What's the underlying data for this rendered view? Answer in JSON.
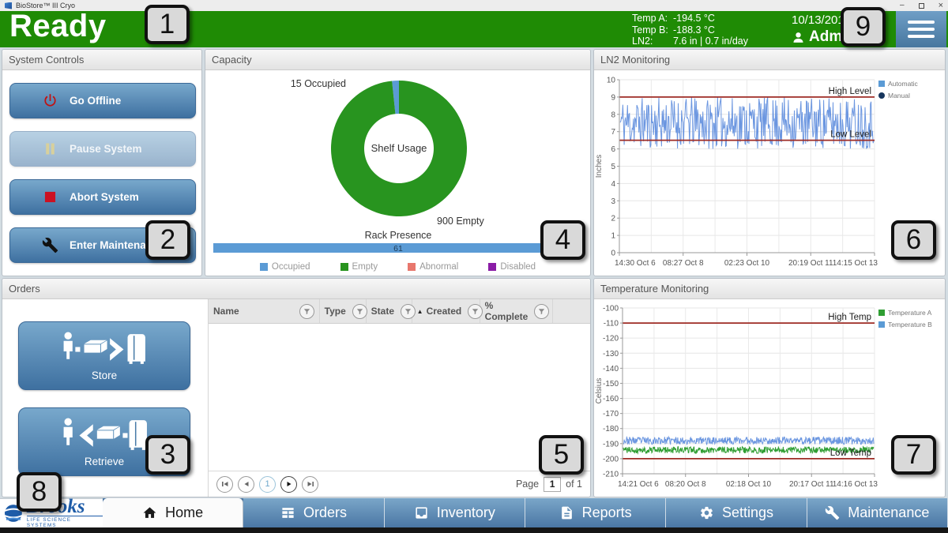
{
  "window": {
    "title": "BioStore™ III Cryo"
  },
  "header": {
    "status": "Ready",
    "readouts": [
      {
        "label": "Temp A:",
        "value": "-194.5 °C"
      },
      {
        "label": "Temp B:",
        "value": "-188.3 °C"
      },
      {
        "label": "LN2:",
        "value": "7.6 in  |  0.7 in/day"
      }
    ],
    "date": "10/13/201",
    "user": "Adm",
    "accent_green": "#1f8b05"
  },
  "system_controls": {
    "title": "System Controls",
    "buttons": [
      {
        "label": "Go Offline",
        "icon": "power-icon",
        "enabled": true
      },
      {
        "label": "Pause System",
        "icon": "pause-icon",
        "enabled": false
      },
      {
        "label": "Abort System",
        "icon": "stop-icon",
        "enabled": true
      },
      {
        "label": "Enter Maintenance",
        "icon": "wrench-icon",
        "enabled": true
      }
    ]
  },
  "capacity": {
    "title": "Capacity"
  },
  "ln2": {
    "title": "LN2 Monitoring"
  },
  "temperature": {
    "title": "Temperature Monitoring"
  },
  "orders": {
    "title": "Orders",
    "store_label": "Store",
    "retrieve_label": "Retrieve",
    "columns": [
      {
        "label": "Name",
        "sorted": ""
      },
      {
        "label": "Type",
        "sorted": ""
      },
      {
        "label": "State",
        "sorted": ""
      },
      {
        "label": "Created",
        "sorted": "asc"
      },
      {
        "label": "% Complete",
        "sorted": ""
      }
    ],
    "rows": [],
    "pagination": {
      "page_label": "Page",
      "current_page": "1",
      "of_label": "of 1"
    }
  },
  "navbar": {
    "logo_brand": "Brooks",
    "logo_tagline": "LIFE SCIENCE SYSTEMS",
    "tabs": [
      {
        "label": "Home",
        "icon": "home-icon",
        "active": true
      },
      {
        "label": "Orders",
        "icon": "orders-icon",
        "active": false
      },
      {
        "label": "Inventory",
        "icon": "inventory-icon",
        "active": false
      },
      {
        "label": "Reports",
        "icon": "reports-icon",
        "active": false
      },
      {
        "label": "Settings",
        "icon": "settings-icon",
        "active": false
      },
      {
        "label": "Maintenance",
        "icon": "wrench-icon",
        "active": false
      }
    ]
  },
  "callouts": [
    "1",
    "2",
    "3",
    "4",
    "5",
    "6",
    "7",
    "8",
    "9"
  ],
  "chart_data": [
    {
      "id": "shelf_usage",
      "type": "pie",
      "center_label": "Shelf Usage",
      "labels": [
        "Occupied",
        "Empty",
        "Abnormal",
        "Disabled"
      ],
      "values": [
        15,
        900,
        0,
        0
      ],
      "colors": [
        "#5b9bd5",
        "#28941f",
        "#e8776d",
        "#8a1ca6"
      ],
      "annotations": {
        "occupied": "15 Occupied",
        "empty": "900 Empty"
      }
    },
    {
      "id": "rack_presence",
      "type": "bar",
      "title": "Rack Presence",
      "categories": [
        "Rack Presence"
      ],
      "values": [
        61
      ],
      "value_label": "61",
      "bar_color": "#5b9bd5",
      "fill_fraction": 1.0
    },
    {
      "id": "ln2_level",
      "type": "line",
      "ylabel": "Inches",
      "ylim": [
        0,
        10
      ],
      "yticks": [
        0,
        1,
        2,
        3,
        4,
        5,
        6,
        7,
        8,
        9,
        10
      ],
      "xticklabels": [
        "14:30 Oct 6",
        "08:27 Oct 8",
        "02:23 Oct 10",
        "20:19 Oct 11",
        "14:15 Oct 13"
      ],
      "series": [
        {
          "name": "Automatic",
          "color": "#6b96e0",
          "range": [
            6,
            9
          ],
          "points": 380,
          "seed": 11
        }
      ],
      "legend": [
        {
          "name": "Automatic",
          "color": "#5b9bd5",
          "marker": "square"
        },
        {
          "name": "Manual",
          "color": "#17365d",
          "marker": "circle"
        }
      ],
      "reference_lines": [
        {
          "label": "High Level",
          "value": 9,
          "color": "#9e2b25"
        },
        {
          "label": "Low Level",
          "value": 6.5,
          "color": "#9e2b25"
        }
      ]
    },
    {
      "id": "temperature",
      "type": "line",
      "ylabel": "Celsius",
      "ylim": [
        -210,
        -100
      ],
      "yticks": [
        -100,
        -110,
        -120,
        -130,
        -140,
        -150,
        -160,
        -170,
        -180,
        -190,
        -200,
        -210
      ],
      "xticklabels": [
        "14:21 Oct 6",
        "08:20 Oct 8",
        "02:18 Oct 10",
        "20:17 Oct 11",
        "14:16 Oct 13"
      ],
      "series": [
        {
          "name": "Temperature B",
          "color": "#6b96e0",
          "range": [
            -190.5,
            -185.5
          ],
          "points": 520,
          "seed": 23
        },
        {
          "name": "Temperature A",
          "color": "#2f9e33",
          "range": [
            -196.5,
            -192
          ],
          "points": 520,
          "seed": 41
        }
      ],
      "legend": [
        {
          "name": "Temperature A",
          "color": "#2f9e33",
          "marker": "square"
        },
        {
          "name": "Temperature B",
          "color": "#5b9bd5",
          "marker": "square"
        }
      ],
      "reference_lines": [
        {
          "label": "High Temp",
          "value": -110,
          "color": "#9e2b25"
        },
        {
          "label": "Low Temp",
          "value": -200,
          "color": "#9e2b25"
        }
      ]
    }
  ]
}
